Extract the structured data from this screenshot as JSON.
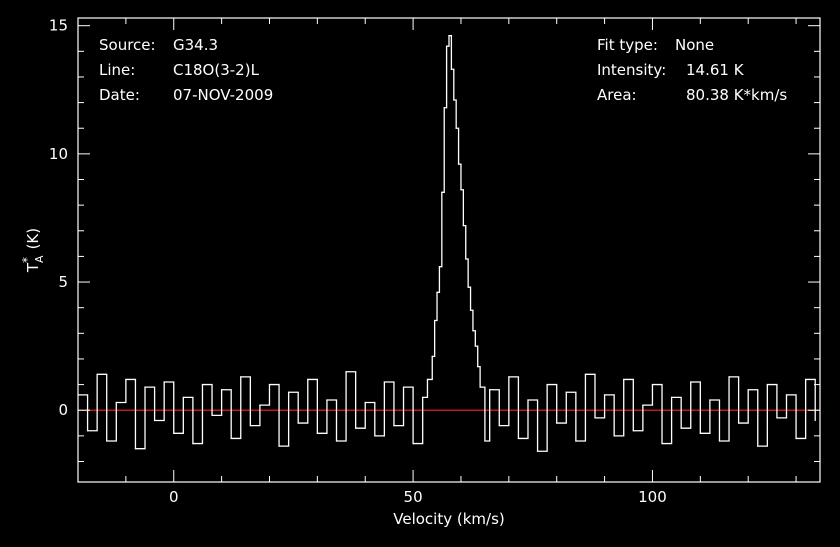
{
  "header": {
    "source_label": "Source:",
    "source_value": "G34.3",
    "line_label": "Line:",
    "line_value": "C18O(3-2)L",
    "date_label": "Date:",
    "date_value": "07-NOV-2009",
    "fit_label": "Fit type:",
    "fit_value": "None",
    "intensity_label": "Intensity:",
    "intensity_value": "14.61 K",
    "area_label": "Area:",
    "area_value": "80.38 K*km/s"
  },
  "colors": {
    "background": "#000000",
    "spectrum": "#ffffff",
    "baseline": "#e02020",
    "axes": "#ffffff"
  },
  "chart_data": {
    "type": "line",
    "title": "",
    "xlabel": "Velocity (km/s)",
    "ylabel_main": "T",
    "ylabel_sup": "*",
    "ylabel_sub": "A",
    "ylabel_unit": "(K)",
    "xlim": [
      -20,
      135
    ],
    "ylim": [
      -2.8,
      15.3
    ],
    "x_ticks": [
      0,
      50,
      100
    ],
    "x_tick_labels": [
      "0",
      "50",
      "100"
    ],
    "y_ticks": [
      0,
      5,
      10,
      15
    ],
    "y_tick_labels": [
      "0",
      "5",
      "10",
      "15"
    ],
    "baseline": 0,
    "peak": {
      "x": 57.5,
      "y": 14.61
    },
    "series": [
      {
        "x": [
          -20,
          -18,
          -16,
          -14,
          -12,
          -10,
          -8,
          -6,
          -4,
          -2,
          0,
          2,
          4,
          6,
          8,
          10,
          12,
          14,
          16,
          18,
          20,
          22,
          24,
          26,
          28,
          30,
          32,
          34,
          36,
          38,
          40,
          42,
          44,
          46,
          48,
          50,
          52,
          53,
          54,
          54.5,
          55,
          55.5,
          56,
          56.5,
          57,
          57.5,
          58,
          58.5,
          59,
          59.5,
          60,
          60.5,
          61,
          61.5,
          62,
          62.5,
          63,
          63.5,
          64,
          65,
          66,
          68,
          70,
          72,
          74,
          76,
          78,
          80,
          82,
          84,
          86,
          88,
          90,
          92,
          94,
          96,
          98,
          100,
          102,
          104,
          106,
          108,
          110,
          112,
          114,
          116,
          118,
          120,
          122,
          124,
          126,
          128,
          130,
          132,
          134
        ],
        "values": [
          0.6,
          -0.8,
          1.4,
          -1.2,
          0.3,
          1.2,
          -1.5,
          0.9,
          -0.4,
          1.1,
          -0.9,
          0.5,
          -1.3,
          1.0,
          -0.2,
          0.8,
          -1.1,
          1.3,
          -0.6,
          0.2,
          1.0,
          -1.4,
          0.7,
          -0.5,
          1.2,
          -0.9,
          0.4,
          -1.2,
          1.5,
          -0.7,
          0.3,
          -1.0,
          1.1,
          -0.6,
          0.9,
          -1.3,
          0.5,
          1.2,
          2.1,
          3.5,
          4.6,
          5.6,
          8.5,
          11.8,
          14.2,
          14.61,
          13.3,
          12.1,
          11.0,
          9.6,
          8.6,
          7.2,
          5.9,
          4.8,
          3.9,
          3.1,
          2.5,
          1.7,
          0.9,
          -1.2,
          0.8,
          -0.6,
          1.3,
          -1.1,
          0.4,
          -1.6,
          1.0,
          -0.5,
          0.7,
          -1.2,
          1.4,
          -0.3,
          0.6,
          -1.0,
          1.2,
          -0.8,
          0.2,
          1.0,
          -1.3,
          0.5,
          -0.7,
          1.1,
          -0.9,
          0.4,
          -1.2,
          1.3,
          -0.5,
          0.8,
          -1.4,
          1.0,
          -0.3,
          0.6,
          -1.1,
          1.2,
          -0.4
        ]
      }
    ]
  }
}
